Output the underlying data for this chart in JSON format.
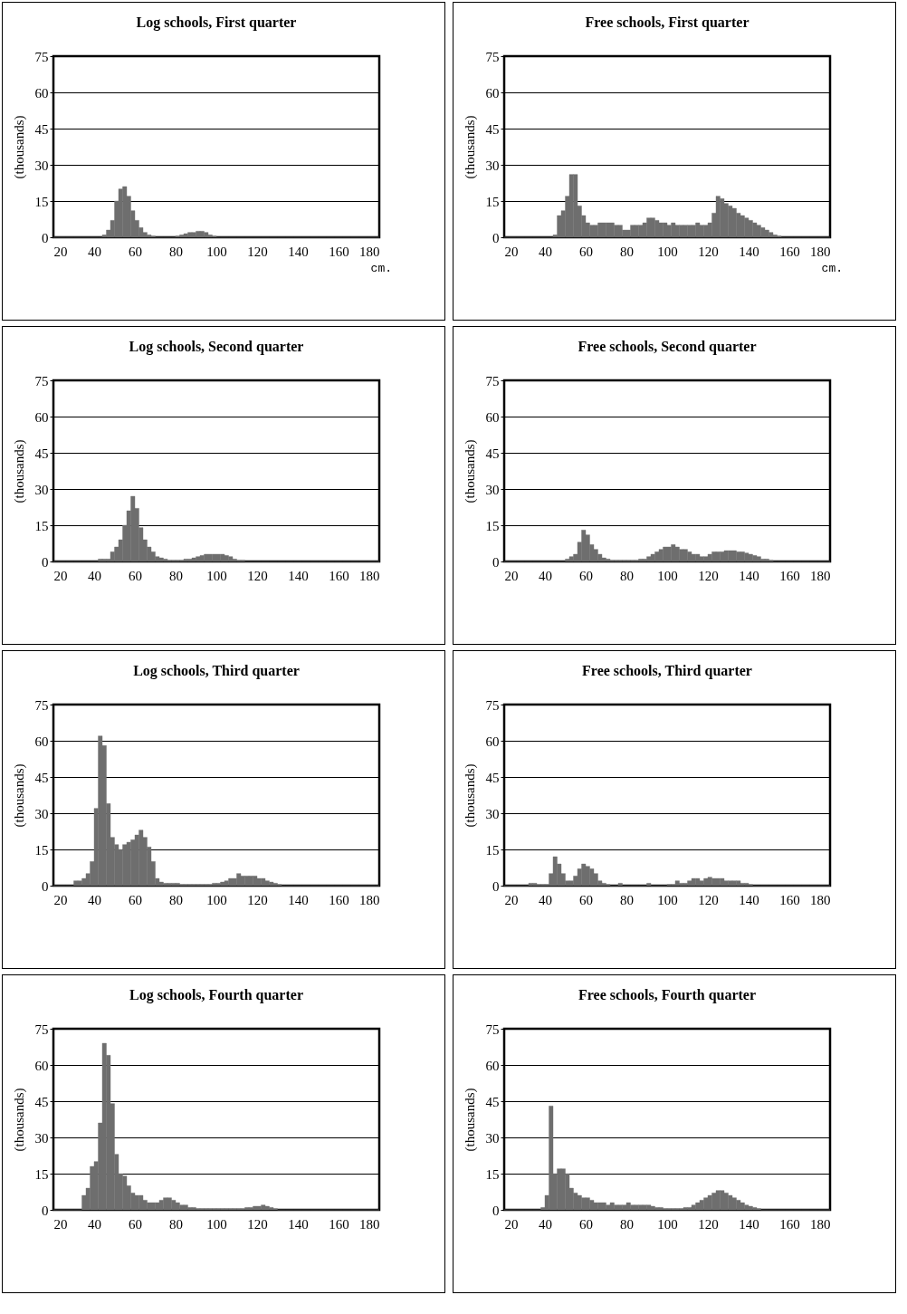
{
  "chart_data": [
    {
      "type": "histogram",
      "title": "Log schools, First quarter",
      "ylabel": "(thousands)",
      "color": "#6e6e6e",
      "grid": "y",
      "xlim": [
        20,
        180
      ],
      "xticks": [
        20,
        40,
        60,
        80,
        100,
        120,
        140,
        160,
        180
      ],
      "ylim": [
        0,
        75
      ],
      "yticks": [
        0,
        15,
        30,
        45,
        60,
        75
      ],
      "annotations": [
        "cm."
      ],
      "bins": [
        20,
        22,
        24,
        26,
        28,
        30,
        32,
        34,
        36,
        38,
        40,
        42,
        44,
        46,
        48,
        50,
        52,
        54,
        56,
        58,
        60,
        62,
        64,
        66,
        68,
        70,
        72,
        74,
        76,
        78,
        80,
        82,
        84,
        86,
        88,
        90,
        92,
        94,
        96,
        98,
        100,
        102,
        104,
        106,
        108,
        110,
        112,
        114,
        116,
        118,
        120,
        122,
        124,
        126,
        128,
        130,
        132,
        134,
        136,
        138,
        140,
        142,
        144,
        146,
        148,
        150,
        152,
        154,
        156,
        158,
        160,
        162,
        164,
        166,
        168,
        170,
        172,
        174,
        176,
        178,
        180
      ],
      "values": [
        0,
        0,
        0,
        0,
        0,
        0,
        0,
        0,
        0,
        0,
        0,
        0,
        1,
        3,
        7,
        15,
        20,
        21,
        17,
        11,
        7,
        4,
        2,
        1,
        0.5,
        0,
        0,
        0,
        0,
        0,
        0.5,
        1,
        1.5,
        2,
        2,
        2.5,
        2.5,
        2,
        1,
        0.5,
        0,
        0,
        0,
        0,
        0,
        0,
        0,
        0,
        0,
        0,
        0,
        0,
        0,
        0,
        0,
        0,
        0,
        0,
        0,
        0,
        0,
        0,
        0,
        0,
        0,
        0,
        0,
        0,
        0,
        0,
        0,
        0,
        0,
        0,
        0,
        0,
        0,
        0,
        0,
        0
      ]
    },
    {
      "type": "histogram",
      "title": "Free schools, First quarter",
      "ylabel": "(thousands)",
      "color": "#6e6e6e",
      "grid": "y",
      "xlim": [
        20,
        180
      ],
      "xticks": [
        20,
        40,
        60,
        80,
        100,
        120,
        140,
        160,
        180
      ],
      "ylim": [
        0,
        75
      ],
      "yticks": [
        0,
        15,
        30,
        45,
        60,
        75
      ],
      "annotations": [
        "cm."
      ],
      "bins": [
        20,
        22,
        24,
        26,
        28,
        30,
        32,
        34,
        36,
        38,
        40,
        42,
        44,
        46,
        48,
        50,
        52,
        54,
        56,
        58,
        60,
        62,
        64,
        66,
        68,
        70,
        72,
        74,
        76,
        78,
        80,
        82,
        84,
        86,
        88,
        90,
        92,
        94,
        96,
        98,
        100,
        102,
        104,
        106,
        108,
        110,
        112,
        114,
        116,
        118,
        120,
        122,
        124,
        126,
        128,
        130,
        132,
        134,
        136,
        138,
        140,
        142,
        144,
        146,
        148,
        150,
        152,
        154,
        156,
        158,
        160,
        162,
        164,
        166,
        168,
        170,
        172,
        174,
        176,
        178,
        180
      ],
      "values": [
        0,
        0,
        0,
        0,
        0,
        0,
        0,
        0,
        0,
        0,
        0,
        0,
        1,
        9,
        11,
        17,
        26,
        26,
        13,
        9,
        6,
        5,
        5,
        6,
        6,
        6,
        6,
        5,
        5,
        3,
        3,
        5,
        5,
        5,
        6,
        8,
        8,
        7,
        6,
        6,
        5,
        6,
        5,
        5,
        5,
        5,
        5,
        6,
        5,
        5,
        6,
        10,
        17,
        16,
        14,
        13,
        12,
        10,
        9,
        8,
        7,
        6,
        5,
        4,
        3,
        2,
        1,
        0.5,
        0,
        0,
        0,
        0,
        0,
        0,
        0,
        0,
        0,
        0,
        0,
        0
      ]
    },
    {
      "type": "histogram",
      "title": "Log schools, Second quarter",
      "ylabel": "(thousands)",
      "color": "#6e6e6e",
      "grid": "y",
      "xlim": [
        20,
        180
      ],
      "xticks": [
        20,
        40,
        60,
        80,
        100,
        120,
        140,
        160,
        180
      ],
      "ylim": [
        0,
        75
      ],
      "yticks": [
        0,
        15,
        30,
        45,
        60,
        75
      ],
      "bins": [
        20,
        22,
        24,
        26,
        28,
        30,
        32,
        34,
        36,
        38,
        40,
        42,
        44,
        46,
        48,
        50,
        52,
        54,
        56,
        58,
        60,
        62,
        64,
        66,
        68,
        70,
        72,
        74,
        76,
        78,
        80,
        82,
        84,
        86,
        88,
        90,
        92,
        94,
        96,
        98,
        100,
        102,
        104,
        106,
        108,
        110,
        112,
        114,
        116,
        118,
        120,
        122,
        124,
        126,
        128,
        130,
        132,
        134,
        136,
        138,
        140,
        142,
        144,
        146,
        148,
        150,
        152,
        154,
        156,
        158,
        160,
        162,
        164,
        166,
        168,
        170,
        172,
        174,
        176,
        178,
        180
      ],
      "values": [
        0,
        0,
        0,
        0,
        0,
        0,
        0,
        0,
        0,
        0,
        0,
        1,
        1,
        1,
        4,
        6,
        9,
        15,
        21,
        27,
        22,
        14,
        9,
        6,
        4,
        2,
        1.5,
        1,
        0.5,
        0.5,
        0.5,
        0.5,
        1,
        1,
        1.5,
        2,
        2.5,
        3,
        3,
        3,
        3,
        3,
        2.5,
        2,
        1,
        0.5,
        0.5,
        0,
        0,
        0,
        0,
        0,
        0,
        0,
        0,
        0,
        0,
        0,
        0,
        0,
        0,
        0,
        0,
        0,
        0,
        0,
        0,
        0,
        0,
        0,
        0,
        0,
        0,
        0,
        0,
        0,
        0,
        0,
        0,
        0
      ]
    },
    {
      "type": "histogram",
      "title": "Free schools, Second quarter",
      "ylabel": "(thousands)",
      "color": "#6e6e6e",
      "grid": "y",
      "xlim": [
        20,
        180
      ],
      "xticks": [
        20,
        40,
        60,
        80,
        100,
        120,
        140,
        160,
        180
      ],
      "ylim": [
        0,
        75
      ],
      "yticks": [
        0,
        15,
        30,
        45,
        60,
        75
      ],
      "bins": [
        20,
        22,
        24,
        26,
        28,
        30,
        32,
        34,
        36,
        38,
        40,
        42,
        44,
        46,
        48,
        50,
        52,
        54,
        56,
        58,
        60,
        62,
        64,
        66,
        68,
        70,
        72,
        74,
        76,
        78,
        80,
        82,
        84,
        86,
        88,
        90,
        92,
        94,
        96,
        98,
        100,
        102,
        104,
        106,
        108,
        110,
        112,
        114,
        116,
        118,
        120,
        122,
        124,
        126,
        128,
        130,
        132,
        134,
        136,
        138,
        140,
        142,
        144,
        146,
        148,
        150,
        152,
        154,
        156,
        158,
        160,
        162,
        164,
        166,
        168,
        170,
        172,
        174,
        176,
        178,
        180
      ],
      "values": [
        0,
        0,
        0,
        0,
        0,
        0,
        0,
        0,
        0,
        0,
        0,
        0,
        0,
        0,
        0,
        1,
        2,
        3,
        8,
        13,
        11,
        7,
        5,
        3,
        1.5,
        1,
        0.5,
        0.5,
        0.5,
        0.5,
        0.5,
        0.5,
        0.5,
        1,
        1,
        2,
        3,
        4,
        5,
        6,
        6,
        7,
        6,
        5,
        5,
        4,
        3,
        3,
        2,
        2,
        3,
        4,
        4,
        4,
        4.5,
        4.5,
        4.5,
        4,
        4,
        3.5,
        3,
        2.5,
        2,
        1,
        1,
        0.5,
        0,
        0,
        0,
        0,
        0,
        0,
        0,
        0,
        0,
        0,
        0,
        0,
        0,
        0
      ]
    },
    {
      "type": "histogram",
      "title": "Log schools, Third quarter",
      "ylabel": "(thousands)",
      "color": "#6e6e6e",
      "grid": "y",
      "xlim": [
        20,
        180
      ],
      "xticks": [
        20,
        40,
        60,
        80,
        100,
        120,
        140,
        160,
        180
      ],
      "ylim": [
        0,
        75
      ],
      "yticks": [
        0,
        15,
        30,
        45,
        60,
        75
      ],
      "bins": [
        20,
        22,
        24,
        26,
        28,
        30,
        32,
        34,
        36,
        38,
        40,
        42,
        44,
        46,
        48,
        50,
        52,
        54,
        56,
        58,
        60,
        62,
        64,
        66,
        68,
        70,
        72,
        74,
        76,
        78,
        80,
        82,
        84,
        86,
        88,
        90,
        92,
        94,
        96,
        98,
        100,
        102,
        104,
        106,
        108,
        110,
        112,
        114,
        116,
        118,
        120,
        122,
        124,
        126,
        128,
        130,
        132,
        134,
        136,
        138,
        140,
        142,
        144,
        146,
        148,
        150,
        152,
        154,
        156,
        158,
        160,
        162,
        164,
        166,
        168,
        170,
        172,
        174,
        176,
        178,
        180
      ],
      "values": [
        0,
        0,
        0,
        0,
        0,
        2,
        2,
        3,
        5,
        10,
        32,
        62,
        58,
        34,
        20,
        17,
        15,
        17,
        18,
        19,
        21,
        23,
        20,
        16,
        10,
        3,
        1.5,
        1,
        1,
        1,
        1,
        0.5,
        0.5,
        0.5,
        0.5,
        0.5,
        0.5,
        0.5,
        0.5,
        1,
        1,
        1.5,
        2,
        3,
        3,
        5,
        4,
        4,
        4,
        4,
        3,
        3,
        2,
        1.5,
        1,
        0.5,
        0,
        0,
        0,
        0,
        0,
        0,
        0,
        0,
        0,
        0,
        0,
        0,
        0,
        0,
        0,
        0,
        0,
        0,
        0,
        0,
        0,
        0,
        0,
        0
      ]
    },
    {
      "type": "histogram",
      "title": "Free schools, Third quarter",
      "ylabel": "(thousands)",
      "color": "#6e6e6e",
      "grid": "y",
      "xlim": [
        20,
        180
      ],
      "xticks": [
        20,
        40,
        60,
        80,
        100,
        120,
        140,
        160,
        180
      ],
      "ylim": [
        0,
        75
      ],
      "yticks": [
        0,
        15,
        30,
        45,
        60,
        75
      ],
      "bins": [
        20,
        22,
        24,
        26,
        28,
        30,
        32,
        34,
        36,
        38,
        40,
        42,
        44,
        46,
        48,
        50,
        52,
        54,
        56,
        58,
        60,
        62,
        64,
        66,
        68,
        70,
        72,
        74,
        76,
        78,
        80,
        82,
        84,
        86,
        88,
        90,
        92,
        94,
        96,
        98,
        100,
        102,
        104,
        106,
        108,
        110,
        112,
        114,
        116,
        118,
        120,
        122,
        124,
        126,
        128,
        130,
        132,
        134,
        136,
        138,
        140,
        142,
        144,
        146,
        148,
        150,
        152,
        154,
        156,
        158,
        160,
        162,
        164,
        166,
        168,
        170,
        172,
        174,
        176,
        178,
        180
      ],
      "values": [
        0,
        0,
        0,
        0,
        0,
        0,
        1,
        1,
        0.5,
        0.5,
        0.5,
        5,
        12,
        9,
        5,
        2,
        2,
        4,
        7,
        9,
        8,
        7,
        5,
        2,
        1,
        0.5,
        0,
        0,
        1,
        0,
        0,
        0,
        0,
        0,
        0,
        1,
        0,
        0,
        0,
        0,
        0.5,
        0.5,
        2,
        1,
        1,
        2,
        3,
        3,
        2,
        3,
        3.5,
        3,
        3,
        3,
        2,
        2,
        2,
        2,
        1,
        1,
        0.5,
        0,
        0,
        0,
        0,
        0,
        0,
        0,
        0,
        0,
        0,
        0,
        0,
        0,
        0,
        0,
        0,
        0,
        0,
        0
      ]
    },
    {
      "type": "histogram",
      "title": "Log schools, Fourth quarter",
      "ylabel": "(thousands)",
      "color": "#6e6e6e",
      "grid": "y",
      "xlim": [
        20,
        180
      ],
      "xticks": [
        20,
        40,
        60,
        80,
        100,
        120,
        140,
        160,
        180
      ],
      "ylim": [
        0,
        75
      ],
      "yticks": [
        0,
        15,
        30,
        45,
        60,
        75
      ],
      "bins": [
        20,
        22,
        24,
        26,
        28,
        30,
        32,
        34,
        36,
        38,
        40,
        42,
        44,
        46,
        48,
        50,
        52,
        54,
        56,
        58,
        60,
        62,
        64,
        66,
        68,
        70,
        72,
        74,
        76,
        78,
        80,
        82,
        84,
        86,
        88,
        90,
        92,
        94,
        96,
        98,
        100,
        102,
        104,
        106,
        108,
        110,
        112,
        114,
        116,
        118,
        120,
        122,
        124,
        126,
        128,
        130,
        132,
        134,
        136,
        138,
        140,
        142,
        144,
        146,
        148,
        150,
        152,
        154,
        156,
        158,
        160,
        162,
        164,
        166,
        168,
        170,
        172,
        174,
        176,
        178,
        180
      ],
      "values": [
        0,
        0,
        0,
        0,
        0,
        0,
        0,
        6,
        9,
        18,
        20,
        36,
        69,
        64,
        44,
        23,
        15,
        14,
        10,
        7,
        6,
        6,
        4,
        3,
        3,
        3,
        4,
        5,
        5,
        4,
        3,
        2,
        2,
        1,
        1,
        0.5,
        0.5,
        0.5,
        0.5,
        0.5,
        0.5,
        0.5,
        0.5,
        0.5,
        0.5,
        0.5,
        0.5,
        1,
        1,
        1.5,
        1.5,
        2,
        1.5,
        1,
        0.5,
        0,
        0,
        0,
        0,
        0,
        0,
        0,
        0,
        0,
        0,
        0,
        0,
        0,
        0,
        0,
        0,
        0,
        0,
        0,
        0,
        0,
        0,
        0,
        0,
        0
      ]
    },
    {
      "type": "histogram",
      "title": "Free schools, Fourth quarter",
      "ylabel": "(thousands)",
      "color": "#6e6e6e",
      "grid": "y",
      "xlim": [
        20,
        180
      ],
      "xticks": [
        20,
        40,
        60,
        80,
        100,
        120,
        140,
        160,
        180
      ],
      "ylim": [
        0,
        75
      ],
      "yticks": [
        0,
        15,
        30,
        45,
        60,
        75
      ],
      "bins": [
        20,
        22,
        24,
        26,
        28,
        30,
        32,
        34,
        36,
        38,
        40,
        42,
        44,
        46,
        48,
        50,
        52,
        54,
        56,
        58,
        60,
        62,
        64,
        66,
        68,
        70,
        72,
        74,
        76,
        78,
        80,
        82,
        84,
        86,
        88,
        90,
        92,
        94,
        96,
        98,
        100,
        102,
        104,
        106,
        108,
        110,
        112,
        114,
        116,
        118,
        120,
        122,
        124,
        126,
        128,
        130,
        132,
        134,
        136,
        138,
        140,
        142,
        144,
        146,
        148,
        150,
        152,
        154,
        156,
        158,
        160,
        162,
        164,
        166,
        168,
        170,
        172,
        174,
        176,
        178,
        180
      ],
      "values": [
        0,
        0,
        0,
        0,
        0,
        0,
        0,
        0,
        0,
        1,
        6,
        43,
        15,
        17,
        17,
        15,
        9,
        7,
        6,
        5,
        5,
        4,
        3,
        3,
        3,
        2,
        3,
        2,
        2,
        2,
        3,
        2,
        2,
        2,
        2,
        2,
        1.5,
        1,
        1,
        0.5,
        0.5,
        0.5,
        0.5,
        0.5,
        1,
        1,
        2,
        3,
        4,
        5,
        6,
        7,
        8,
        8,
        7,
        6,
        5,
        4,
        3,
        2,
        1.5,
        1,
        0.5,
        0,
        0,
        0,
        0,
        0,
        0,
        0,
        0,
        0,
        0,
        0,
        0,
        0,
        0,
        0,
        0,
        0
      ]
    }
  ]
}
